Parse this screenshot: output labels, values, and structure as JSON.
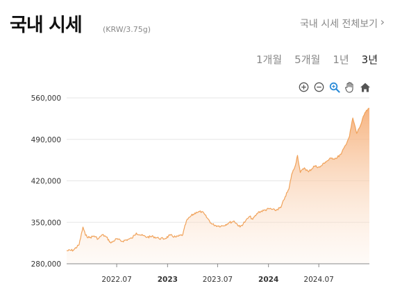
{
  "header": {
    "title": "국내 시세",
    "unit": "(KRW/3.75g)",
    "view_all": "국내 시세 전체보기",
    "chevron": "›"
  },
  "periods": [
    {
      "label": "1개월",
      "active": false
    },
    {
      "label": "5개월",
      "active": false
    },
    {
      "label": "1년",
      "active": false
    },
    {
      "label": "3년",
      "active": true
    }
  ],
  "toolbar": {
    "icons": [
      "zoom-in-icon",
      "zoom-out-icon",
      "magnifier-icon",
      "pan-hand-icon",
      "home-icon"
    ]
  },
  "colors": {
    "line": "#F0A25A",
    "fill_top": "#F6B07A",
    "grid": "#E5E5E5",
    "active_icon": "#2A8BD8"
  },
  "chart_data": {
    "type": "area",
    "title": "",
    "xlabel": "",
    "ylabel": "",
    "ylim": [
      280000,
      560000
    ],
    "yticks": [
      280000,
      350000,
      420000,
      490000,
      560000
    ],
    "ytick_labels": [
      "280,000",
      "350,000",
      "420,000",
      "490,000",
      "560,000"
    ],
    "xlim": [
      "2022-01-01",
      "2024-12-31"
    ],
    "xticks": [
      {
        "date": "2022-07-01",
        "label": "2022.07",
        "bold": false
      },
      {
        "date": "2023-01-01",
        "label": "2023",
        "bold": true
      },
      {
        "date": "2023-07-01",
        "label": "2023.07",
        "bold": false
      },
      {
        "date": "2024-01-01",
        "label": "2024",
        "bold": true
      },
      {
        "date": "2024-07-01",
        "label": "2024.07",
        "bold": false
      }
    ],
    "grid": true,
    "series": [
      {
        "x": [
          "2022-01-01",
          "2022-01-25",
          "2022-02-15",
          "2022-03-01",
          "2022-03-10",
          "2022-03-25",
          "2022-04-10",
          "2022-04-25",
          "2022-05-10",
          "2022-05-25",
          "2022-06-10",
          "2022-06-30",
          "2022-07-20",
          "2022-08-10",
          "2022-08-25",
          "2022-09-10",
          "2022-09-28",
          "2022-10-20",
          "2022-11-10",
          "2022-11-30",
          "2022-12-20",
          "2023-01-10",
          "2023-02-01",
          "2023-02-25",
          "2023-03-10",
          "2023-03-25",
          "2023-04-15",
          "2023-05-05",
          "2023-05-25",
          "2023-06-10",
          "2023-06-30",
          "2023-07-20",
          "2023-08-10",
          "2023-08-30",
          "2023-09-20",
          "2023-10-10",
          "2023-10-25",
          "2023-11-05",
          "2023-11-25",
          "2023-12-15",
          "2024-01-05",
          "2024-01-25",
          "2024-02-15",
          "2024-03-01",
          "2024-03-15",
          "2024-03-25",
          "2024-04-05",
          "2024-04-15",
          "2024-04-25",
          "2024-05-10",
          "2024-05-25",
          "2024-06-15",
          "2024-07-05",
          "2024-07-25",
          "2024-08-15",
          "2024-09-01",
          "2024-09-20",
          "2024-10-05",
          "2024-10-20",
          "2024-11-01",
          "2024-11-15",
          "2024-11-30",
          "2024-12-15",
          "2024-12-31"
        ],
        "values": [
          302000,
          303000,
          312000,
          342000,
          328000,
          324000,
          327000,
          322000,
          329000,
          325000,
          315000,
          322000,
          318000,
          321000,
          323000,
          332000,
          328000,
          325000,
          326000,
          323000,
          322000,
          328000,
          325000,
          329000,
          352000,
          360000,
          367000,
          368000,
          357000,
          347000,
          344000,
          344000,
          349000,
          352000,
          342000,
          352000,
          360000,
          355000,
          367000,
          370000,
          373000,
          370000,
          375000,
          393000,
          406000,
          431000,
          443000,
          463000,
          434000,
          442000,
          435000,
          445000,
          443000,
          452000,
          458000,
          458000,
          465000,
          480000,
          495000,
          526000,
          500000,
          515000,
          535000,
          542000
        ]
      }
    ]
  }
}
